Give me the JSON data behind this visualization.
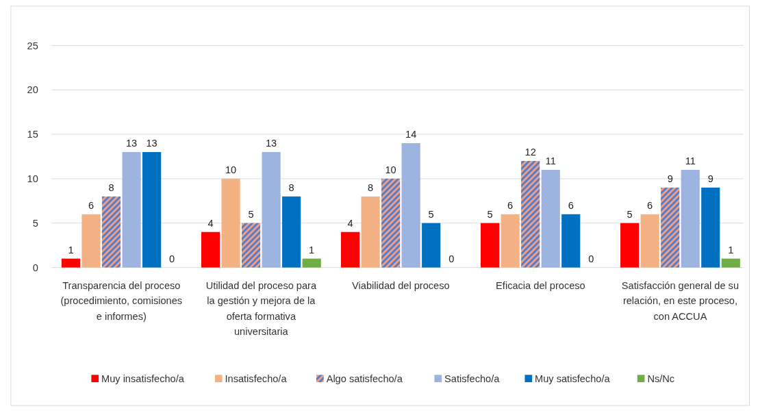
{
  "chart_data": {
    "type": "bar",
    "categories": [
      "Transparencia del proceso (procedimiento, comisiones e informes)",
      "Utilidad del proceso para la gestión y mejora de la oferta formativa universitaria",
      "Viabilidad del proceso",
      "Eficacia del proceso",
      "Satisfacción general de su relación, en este proceso, con ACCUA"
    ],
    "series": [
      {
        "name": "Muy insatisfecho/a",
        "color": "#ff0000",
        "values": [
          1,
          4,
          4,
          5,
          5
        ]
      },
      {
        "name": "Insatisfecho/a",
        "color": "#f4b183",
        "values": [
          6,
          10,
          8,
          6,
          6
        ]
      },
      {
        "name": "Algo satisfecho/a",
        "color": "#e8a090",
        "values": [
          8,
          5,
          10,
          12,
          9
        ]
      },
      {
        "name": "Satisfecho/a",
        "color": "#9db3e0",
        "values": [
          13,
          13,
          14,
          11,
          11
        ]
      },
      {
        "name": "Muy satisfecho/a",
        "color": "#0070c0",
        "values": [
          13,
          8,
          5,
          6,
          9
        ]
      },
      {
        "name": "Ns/Nc",
        "color": "#70ad47",
        "values": [
          0,
          1,
          0,
          0,
          1
        ]
      }
    ],
    "ylim": [
      0,
      25
    ],
    "yticks": [
      0,
      5,
      10,
      15,
      20,
      25
    ],
    "grid": "y",
    "legend": "bottom",
    "data_labels": true
  }
}
